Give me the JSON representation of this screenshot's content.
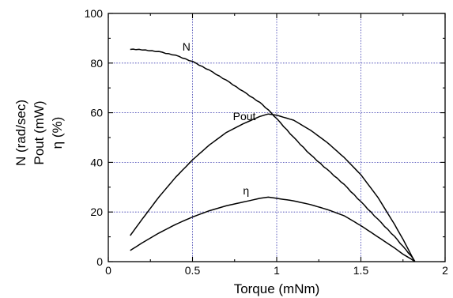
{
  "chart_data": {
    "type": "line",
    "xlabel": "Torque (mNm)",
    "ylabel_lines": [
      "N (rad/sec)",
      "Pout (mW)",
      "η (%)"
    ],
    "xlim": [
      0,
      2
    ],
    "ylim": [
      0,
      100
    ],
    "xticks": [
      0,
      0.5,
      1,
      1.5,
      2
    ],
    "yticks": [
      0,
      20,
      40,
      60,
      80,
      100
    ],
    "xtick_labels": [
      "0",
      "0.5",
      "1",
      "1.5",
      "2"
    ],
    "ytick_labels": [
      "0",
      "20",
      "40",
      "60",
      "80",
      "100"
    ],
    "grid": true,
    "series": [
      {
        "name": "N",
        "x": [
          0.13,
          0.2,
          0.3,
          0.4,
          0.5,
          0.6,
          0.7,
          0.8,
          0.9,
          0.95,
          1.0,
          1.1,
          1.2,
          1.3,
          1.4,
          1.5,
          1.6,
          1.7,
          1.75,
          1.8,
          1.82
        ],
        "y": [
          85.5,
          85.3,
          84.5,
          83,
          80.5,
          77,
          73,
          68.5,
          64,
          61,
          57.5,
          50,
          43,
          37,
          31,
          24,
          17,
          10,
          6,
          2,
          0
        ]
      },
      {
        "name": "Pout",
        "x": [
          0.13,
          0.2,
          0.3,
          0.4,
          0.5,
          0.6,
          0.7,
          0.8,
          0.9,
          0.95,
          1.0,
          1.1,
          1.2,
          1.3,
          1.4,
          1.5,
          1.6,
          1.7,
          1.75,
          1.8,
          1.82
        ],
        "y": [
          10.5,
          17,
          26,
          34,
          41,
          47,
          52,
          55.5,
          58.5,
          59.5,
          59,
          57,
          53,
          48,
          42,
          35,
          26,
          15,
          9,
          2.5,
          0
        ]
      },
      {
        "name": "η",
        "x": [
          0.13,
          0.2,
          0.3,
          0.4,
          0.5,
          0.6,
          0.7,
          0.8,
          0.9,
          0.95,
          1.0,
          1.1,
          1.2,
          1.3,
          1.4,
          1.5,
          1.6,
          1.7,
          1.75,
          1.8,
          1.82
        ],
        "y": [
          4.5,
          7.5,
          11.5,
          15,
          18,
          20.5,
          22.5,
          24,
          25.5,
          26,
          25.5,
          24.5,
          23,
          21,
          18.5,
          14.5,
          10,
          5.5,
          3,
          1,
          0
        ]
      }
    ],
    "series_label_positions": [
      {
        "text": "N",
        "x": 0.44,
        "y": 85
      },
      {
        "text": "Pout",
        "x": 0.74,
        "y": 57
      },
      {
        "text": "η",
        "x": 0.8,
        "y": 27
      }
    ]
  }
}
